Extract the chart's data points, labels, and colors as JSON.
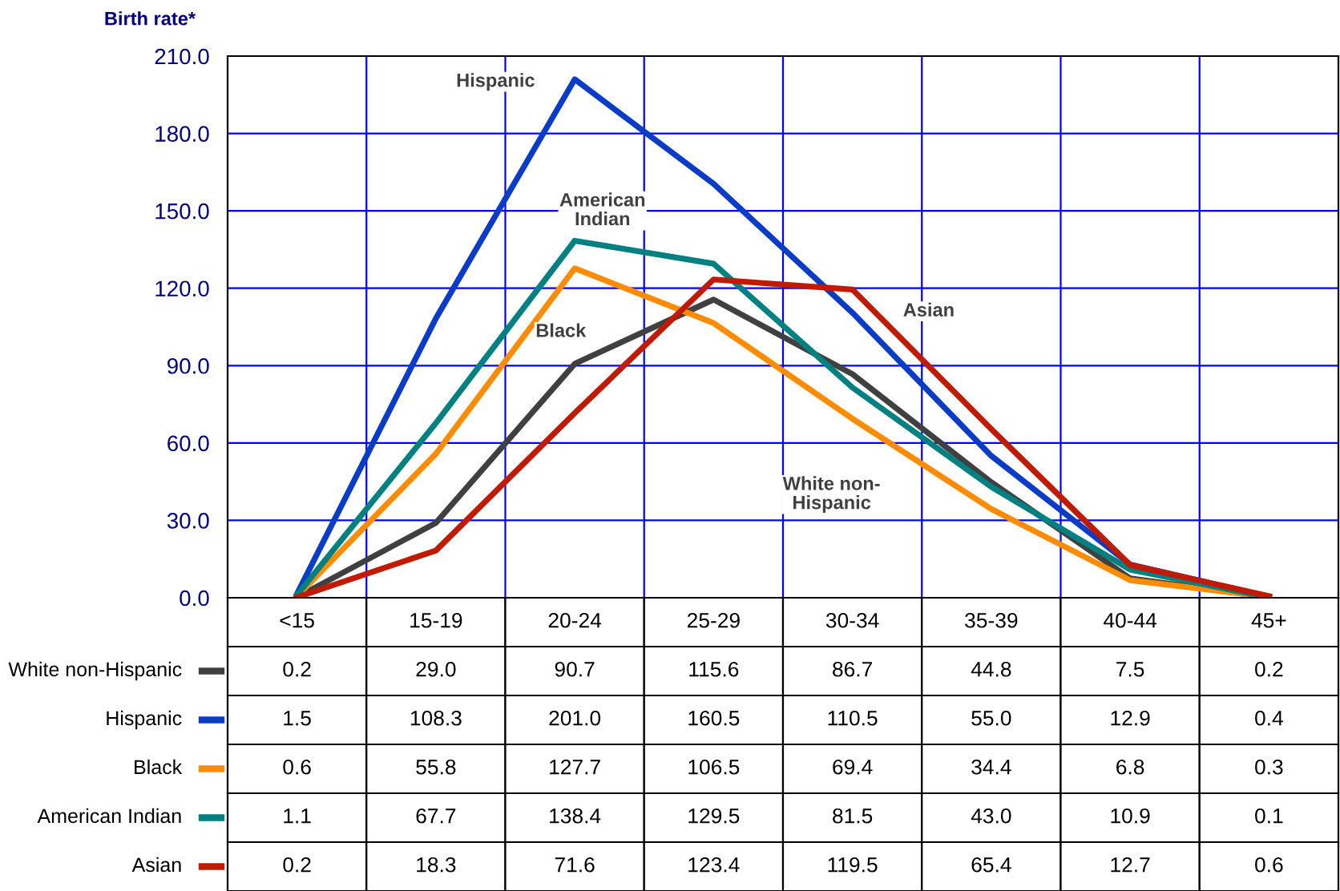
{
  "chart_data": {
    "type": "line",
    "ylabel": "Birth rate*",
    "categories": [
      "<15",
      "15-19",
      "20-24",
      "25-29",
      "30-34",
      "35-39",
      "40-44",
      "45+"
    ],
    "series": [
      {
        "name": "White non-Hispanic",
        "color": "#404040",
        "values": [
          0.2,
          29.0,
          90.7,
          115.6,
          86.7,
          44.8,
          7.5,
          0.2
        ],
        "value_labels": [
          "0.2",
          "29.0",
          "90.7",
          "115.6",
          "86.7",
          "44.8",
          "7.5",
          "0.2"
        ]
      },
      {
        "name": "Hispanic",
        "color": "#0a3cc8",
        "values": [
          1.5,
          108.3,
          201.0,
          160.5,
          110.5,
          55.0,
          12.9,
          0.4
        ],
        "value_labels": [
          "1.5",
          "108.3",
          "201.0",
          "160.5",
          "110.5",
          "55.0",
          "12.9",
          "0.4"
        ]
      },
      {
        "name": "Black",
        "color": "#ff8c00",
        "values": [
          0.6,
          55.8,
          127.7,
          106.5,
          69.4,
          34.4,
          6.8,
          0.3
        ],
        "value_labels": [
          "0.6",
          "55.8",
          "127.7",
          "106.5",
          "69.4",
          "34.4",
          "6.8",
          "0.3"
        ]
      },
      {
        "name": "American Indian",
        "color": "#008080",
        "values": [
          1.1,
          67.7,
          138.4,
          129.5,
          81.5,
          43.0,
          10.9,
          0.1
        ],
        "value_labels": [
          "1.1",
          "67.7",
          "138.4",
          "129.5",
          "81.5",
          "43.0",
          "10.9",
          "0.1"
        ]
      },
      {
        "name": "Asian",
        "color": "#c01a00",
        "values": [
          0.2,
          18.3,
          71.6,
          123.4,
          119.5,
          65.4,
          12.7,
          0.6
        ],
        "value_labels": [
          "0.2",
          "18.3",
          "71.6",
          "123.4",
          "119.5",
          "65.4",
          "12.7",
          "0.6"
        ]
      }
    ],
    "ylim": [
      0,
      210
    ],
    "yticks": [
      {
        "value": 0,
        "label": "0.0"
      },
      {
        "value": 30,
        "label": "30.0"
      },
      {
        "value": 60,
        "label": "60.0"
      },
      {
        "value": 90,
        "label": "90.0"
      },
      {
        "value": 120,
        "label": "120.0"
      },
      {
        "value": 150,
        "label": "150.0"
      },
      {
        "value": 180,
        "label": "180.0"
      },
      {
        "value": 210,
        "label": "210.0"
      }
    ],
    "grid": true,
    "legend": "bottom left",
    "marker": "none",
    "line_style": "solid"
  }
}
